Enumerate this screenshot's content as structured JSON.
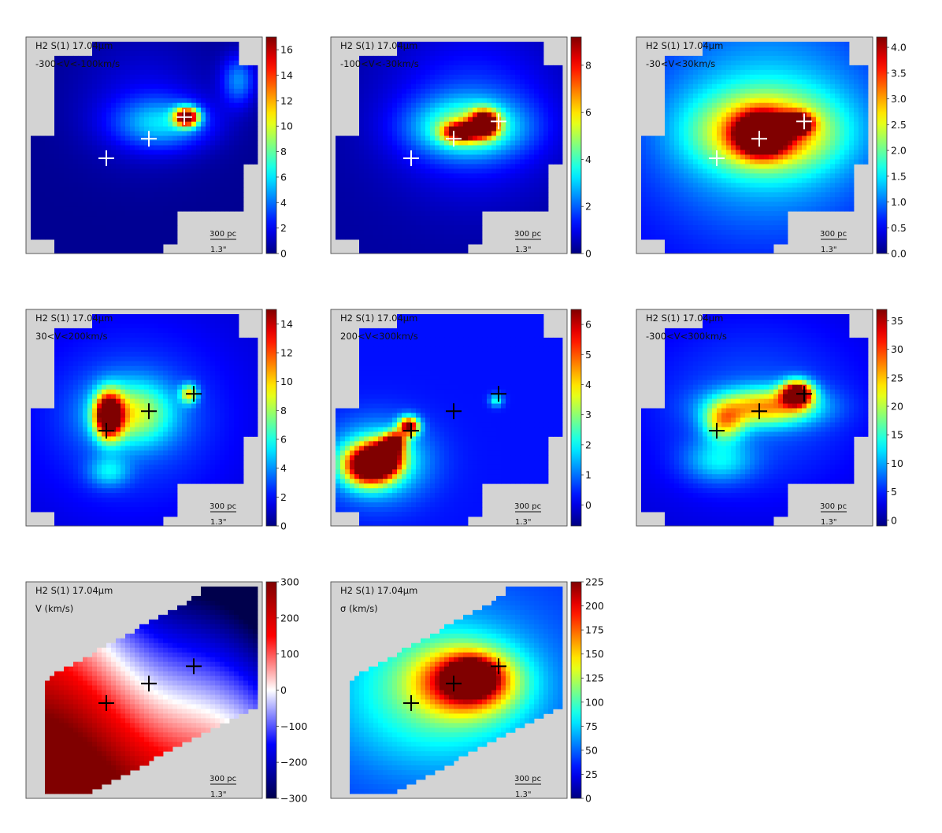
{
  "chart_data": [
    {
      "type": "heatmap",
      "line": "H2 S(1)  17.04μm",
      "range_label": "-300<V<-100km/s",
      "colormap": "jet",
      "clim": [
        0,
        17
      ],
      "ticks": [
        "0",
        "2",
        "4",
        "6",
        "8",
        "10",
        "12",
        "14",
        "16"
      ],
      "tick_values": [
        0,
        2,
        4,
        6,
        8,
        10,
        12,
        14,
        16
      ],
      "scale_bar": {
        "physical": "300 pc",
        "angular": "1.3\""
      },
      "marker_color": "#ffffff",
      "markers": [
        {
          "x": 0.34,
          "y": 0.56
        },
        {
          "x": 0.52,
          "y": 0.47
        },
        {
          "x": 0.67,
          "y": 0.37
        }
      ],
      "blobs": [
        {
          "x": 0.68,
          "y": 0.37,
          "sx": 0.035,
          "sy": 0.03,
          "v": 17
        },
        {
          "x": 0.58,
          "y": 0.4,
          "sx": 0.14,
          "sy": 0.08,
          "v": 4.5
        },
        {
          "x": 0.9,
          "y": 0.2,
          "sx": 0.05,
          "sy": 0.08,
          "v": 4
        },
        {
          "x": 0.5,
          "y": 0.3,
          "sx": 0.2,
          "sy": 0.2,
          "v": 1.5
        }
      ],
      "base": 0.3
    },
    {
      "type": "heatmap",
      "line": "H2 S(1)  17.04μm",
      "range_label": "-100<V<-30km/s",
      "colormap": "jet",
      "clim": [
        0,
        9.2
      ],
      "ticks": [
        "0",
        "2",
        "4",
        "6",
        "8"
      ],
      "tick_values": [
        0,
        2,
        4,
        6,
        8
      ],
      "scale_bar": {
        "physical": "300 pc",
        "angular": "1.3\""
      },
      "marker_color": "#ffffff",
      "markers": [
        {
          "x": 0.34,
          "y": 0.56
        },
        {
          "x": 0.52,
          "y": 0.47
        },
        {
          "x": 0.71,
          "y": 0.39
        }
      ],
      "blobs": [
        {
          "x": 0.65,
          "y": 0.4,
          "sx": 0.04,
          "sy": 0.04,
          "v": 9
        },
        {
          "x": 0.55,
          "y": 0.44,
          "sx": 0.05,
          "sy": 0.03,
          "v": 7
        },
        {
          "x": 0.58,
          "y": 0.42,
          "sx": 0.16,
          "sy": 0.09,
          "v": 3.5
        },
        {
          "x": 0.6,
          "y": 0.35,
          "sx": 0.25,
          "sy": 0.25,
          "v": 1.5
        }
      ],
      "base": 0.3
    },
    {
      "type": "heatmap",
      "line": "H2 S(1)  17.04μm",
      "range_label": "-30<V<30km/s",
      "colormap": "jet",
      "clim": [
        0,
        4.2
      ],
      "ticks": [
        "0.0",
        "0.5",
        "1.0",
        "1.5",
        "2.0",
        "2.5",
        "3.0",
        "3.5",
        "4.0"
      ],
      "tick_values": [
        0,
        0.5,
        1,
        1.5,
        2,
        2.5,
        3,
        3.5,
        4
      ],
      "scale_bar": {
        "physical": "300 pc",
        "angular": "1.3\""
      },
      "marker_color": "#ffffff",
      "markers": [
        {
          "x": 0.34,
          "y": 0.56
        },
        {
          "x": 0.52,
          "y": 0.47
        },
        {
          "x": 0.71,
          "y": 0.39
        }
      ],
      "blobs": [
        {
          "x": 0.53,
          "y": 0.45,
          "sx": 0.07,
          "sy": 0.06,
          "v": 4.2
        },
        {
          "x": 0.68,
          "y": 0.4,
          "sx": 0.04,
          "sy": 0.03,
          "v": 4
        },
        {
          "x": 0.55,
          "y": 0.44,
          "sx": 0.2,
          "sy": 0.12,
          "v": 2.2
        },
        {
          "x": 0.55,
          "y": 0.4,
          "sx": 0.35,
          "sy": 0.35,
          "v": 1.1
        }
      ],
      "base": 0.45
    },
    {
      "type": "heatmap",
      "line": "H2 S(1)  17.04μm",
      "range_label": "30<V<200km/s",
      "colormap": "jet",
      "clim": [
        0,
        15
      ],
      "ticks": [
        "0",
        "2",
        "4",
        "6",
        "8",
        "10",
        "12",
        "14"
      ],
      "tick_values": [
        0,
        2,
        4,
        6,
        8,
        10,
        12,
        14
      ],
      "scale_bar": {
        "physical": "300 pc",
        "angular": "1.3\""
      },
      "marker_color": "#000000",
      "markers": [
        {
          "x": 0.34,
          "y": 0.56
        },
        {
          "x": 0.52,
          "y": 0.47
        },
        {
          "x": 0.71,
          "y": 0.39
        }
      ],
      "blobs": [
        {
          "x": 0.35,
          "y": 0.49,
          "sx": 0.04,
          "sy": 0.07,
          "v": 15
        },
        {
          "x": 0.45,
          "y": 0.48,
          "sx": 0.12,
          "sy": 0.1,
          "v": 6
        },
        {
          "x": 0.69,
          "y": 0.39,
          "sx": 0.025,
          "sy": 0.03,
          "v": 7
        },
        {
          "x": 0.35,
          "y": 0.75,
          "sx": 0.06,
          "sy": 0.05,
          "v": 3
        },
        {
          "x": 0.45,
          "y": 0.5,
          "sx": 0.3,
          "sy": 0.3,
          "v": 2
        }
      ],
      "base": 1.2
    },
    {
      "type": "heatmap",
      "line": "H2 S(1)  17.04μm",
      "range_label": "200<V<300km/s",
      "colormap": "jet",
      "clim": [
        -0.7,
        6.5
      ],
      "ticks": [
        "0",
        "1",
        "2",
        "3",
        "4",
        "5",
        "6"
      ],
      "tick_values": [
        0,
        1,
        2,
        3,
        4,
        5,
        6
      ],
      "scale_bar": {
        "physical": "300 pc",
        "angular": "1.3\""
      },
      "marker_color": "#000000",
      "markers": [
        {
          "x": 0.34,
          "y": 0.56
        },
        {
          "x": 0.52,
          "y": 0.47
        },
        {
          "x": 0.71,
          "y": 0.39
        }
      ],
      "blobs": [
        {
          "x": 0.16,
          "y": 0.72,
          "sx": 0.07,
          "sy": 0.06,
          "v": 6.5
        },
        {
          "x": 0.23,
          "y": 0.68,
          "sx": 0.05,
          "sy": 0.05,
          "v": 5.5
        },
        {
          "x": 0.27,
          "y": 0.61,
          "sx": 0.03,
          "sy": 0.03,
          "v": 5
        },
        {
          "x": 0.33,
          "y": 0.54,
          "sx": 0.03,
          "sy": 0.03,
          "v": 6
        },
        {
          "x": 0.2,
          "y": 0.7,
          "sx": 0.14,
          "sy": 0.12,
          "v": 2.5
        },
        {
          "x": 0.7,
          "y": 0.42,
          "sx": 0.02,
          "sy": 0.02,
          "v": 2
        }
      ],
      "base": 0.3
    },
    {
      "type": "heatmap",
      "line": "H2 S(1)  17.04μm",
      "range_label": "-300<V<300km/s",
      "colormap": "jet",
      "clim": [
        -1,
        37
      ],
      "ticks": [
        "0",
        "5",
        "10",
        "15",
        "20",
        "25",
        "30",
        "35"
      ],
      "tick_values": [
        0,
        5,
        10,
        15,
        20,
        25,
        30,
        35
      ],
      "scale_bar": {
        "physical": "300 pc",
        "angular": "1.3\""
      },
      "marker_color": "#000000",
      "markers": [
        {
          "x": 0.34,
          "y": 0.56
        },
        {
          "x": 0.52,
          "y": 0.47
        },
        {
          "x": 0.71,
          "y": 0.39
        }
      ],
      "blobs": [
        {
          "x": 0.68,
          "y": 0.39,
          "sx": 0.045,
          "sy": 0.04,
          "v": 37
        },
        {
          "x": 0.55,
          "y": 0.45,
          "sx": 0.15,
          "sy": 0.06,
          "v": 20
        },
        {
          "x": 0.37,
          "y": 0.52,
          "sx": 0.06,
          "sy": 0.06,
          "v": 16
        },
        {
          "x": 0.35,
          "y": 0.7,
          "sx": 0.1,
          "sy": 0.07,
          "v": 8
        },
        {
          "x": 0.5,
          "y": 0.45,
          "sx": 0.35,
          "sy": 0.3,
          "v": 5
        }
      ],
      "base": 2
    },
    {
      "type": "heatmap",
      "line": "H2 S(1)  17.04μm",
      "range_label": "V (km/s)",
      "colormap": "bwr",
      "clim": [
        -300,
        300
      ],
      "ticks": [
        "−300",
        "−200",
        "−100",
        "0",
        "100",
        "200",
        "300"
      ],
      "tick_values": [
        -300,
        -200,
        -100,
        0,
        100,
        200,
        300
      ],
      "scale_bar": {
        "physical": "300 pc",
        "angular": "1.3\""
      },
      "marker_color": "#000000",
      "markers": [
        {
          "x": 0.34,
          "y": 0.56
        },
        {
          "x": 0.52,
          "y": 0.47
        },
        {
          "x": 0.71,
          "y": 0.39
        }
      ]
    },
    {
      "type": "heatmap",
      "line": "H2 S(1)  17.04μm",
      "range_label": "σ (km/s)",
      "colormap": "jet",
      "clim": [
        0,
        225
      ],
      "ticks": [
        "0",
        "25",
        "50",
        "75",
        "100",
        "125",
        "150",
        "175",
        "200",
        "225"
      ],
      "tick_values": [
        0,
        25,
        50,
        75,
        100,
        125,
        150,
        175,
        200,
        225
      ],
      "scale_bar": {
        "physical": "300 pc",
        "angular": "1.3\""
      },
      "marker_color": "#000000",
      "markers": [
        {
          "x": 0.34,
          "y": 0.56
        },
        {
          "x": 0.52,
          "y": 0.47
        },
        {
          "x": 0.71,
          "y": 0.39
        }
      ],
      "blobs": [
        {
          "x": 0.58,
          "y": 0.46,
          "sx": 0.14,
          "sy": 0.1,
          "v": 150
        },
        {
          "x": 0.6,
          "y": 0.44,
          "sx": 0.06,
          "sy": 0.05,
          "v": 175
        },
        {
          "x": 0.45,
          "y": 0.5,
          "sx": 0.3,
          "sy": 0.25,
          "v": 70
        }
      ],
      "base": 40
    }
  ]
}
